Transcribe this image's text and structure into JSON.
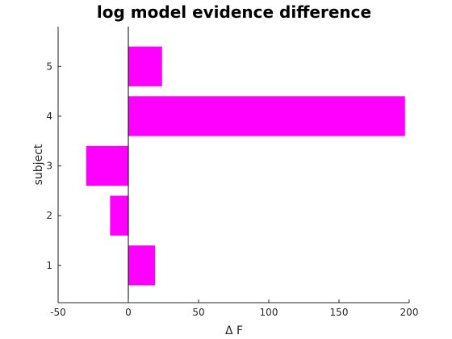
{
  "chart_data": {
    "type": "bar",
    "orientation": "horizontal",
    "title": "log model evidence difference",
    "xlabel": "Δ F",
    "ylabel": "subject",
    "categories": [
      "1",
      "2",
      "3",
      "4",
      "5"
    ],
    "values": [
      19,
      -13,
      -30,
      197,
      24
    ],
    "xlim": [
      -50,
      200
    ],
    "ylim": [
      0.25,
      5.8
    ],
    "xticks": [
      -50,
      0,
      50,
      100,
      150,
      200
    ],
    "yticks": [
      1,
      2,
      3,
      4,
      5
    ],
    "bar_width": 0.8,
    "bar_color": "#ff00ff",
    "grid": false,
    "legend": "none"
  }
}
